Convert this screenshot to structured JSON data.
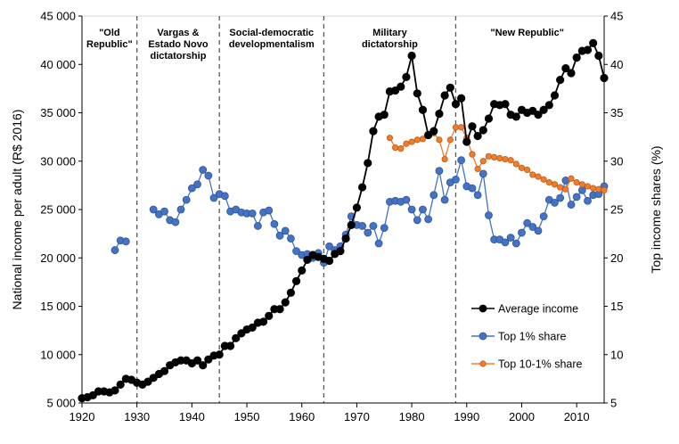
{
  "chart_data": {
    "type": "line",
    "title": "",
    "xlabel": "",
    "ylabel_left": "National income per adult (R$ 2016)",
    "ylabel_right": "Top income shares (%)",
    "xlim": [
      1920,
      2015
    ],
    "ylim_left": [
      5000,
      45000
    ],
    "ylim_right": [
      5,
      45
    ],
    "x_ticks": [
      "1920",
      "1930",
      "1940",
      "1950",
      "1960",
      "1970",
      "1980",
      "1990",
      "2000",
      "2010"
    ],
    "y_left_ticks": [
      "5 000",
      "10 000",
      "15 000",
      "20 000",
      "25 000",
      "30 000",
      "35 000",
      "40 000",
      "45 000"
    ],
    "y_right_ticks": [
      "5",
      "10",
      "15",
      "20",
      "25",
      "30",
      "35",
      "40",
      "45"
    ],
    "grid": false,
    "legend_position": "bottom-right",
    "period_dividers": [
      1930,
      1945,
      1964,
      1988
    ],
    "period_labels": [
      {
        "lines": [
          "\"Old",
          "Republic\""
        ],
        "x": 1925
      },
      {
        "lines": [
          "Vargas &",
          "Estado Novo",
          "dictatorship"
        ],
        "x": 1937.5
      },
      {
        "lines": [
          "Social-democratic",
          "developmentalism"
        ],
        "x": 1954.5
      },
      {
        "lines": [
          "Military",
          "dictatorship"
        ],
        "x": 1976
      },
      {
        "lines": [
          "\"New Republic\""
        ],
        "x": 2001
      }
    ],
    "series": [
      {
        "name": "Average income",
        "axis": "left",
        "color": "#000000",
        "x": [
          1920,
          1921,
          1922,
          1923,
          1924,
          1925,
          1926,
          1927,
          1928,
          1929,
          1930,
          1931,
          1932,
          1933,
          1934,
          1935,
          1936,
          1937,
          1938,
          1939,
          1940,
          1941,
          1942,
          1943,
          1944,
          1945,
          1946,
          1947,
          1948,
          1949,
          1950,
          1951,
          1952,
          1953,
          1954,
          1955,
          1956,
          1957,
          1958,
          1959,
          1960,
          1961,
          1962,
          1963,
          1964,
          1965,
          1966,
          1967,
          1968,
          1969,
          1970,
          1971,
          1972,
          1973,
          1974,
          1975,
          1976,
          1977,
          1978,
          1979,
          1980,
          1981,
          1982,
          1983,
          1984,
          1985,
          1986,
          1987,
          1988,
          1989,
          1990,
          1991,
          1992,
          1993,
          1994,
          1995,
          1996,
          1997,
          1998,
          1999,
          2000,
          2001,
          2002,
          2003,
          2004,
          2005,
          2006,
          2007,
          2008,
          2009,
          2010,
          2011,
          2012,
          2013,
          2014,
          2015
        ],
        "values": [
          5500,
          5600,
          5800,
          6200,
          6200,
          6100,
          6300,
          6900,
          7500,
          7400,
          7100,
          6900,
          7200,
          7600,
          8000,
          8300,
          8900,
          9200,
          9400,
          9400,
          9100,
          9400,
          8900,
          9500,
          9900,
          10000,
          10900,
          10900,
          11700,
          12200,
          12600,
          12800,
          13300,
          13400,
          14000,
          14700,
          14700,
          15400,
          16400,
          17600,
          18700,
          19800,
          20300,
          20100,
          19900,
          19700,
          20400,
          20700,
          22000,
          23400,
          25200,
          27300,
          29800,
          33100,
          34600,
          34800,
          37200,
          37300,
          37700,
          38700,
          40900,
          37000,
          35300,
          32700,
          33100,
          34900,
          36800,
          37600,
          35900,
          36500,
          32000,
          33600,
          32600,
          33200,
          34400,
          35900,
          35800,
          35900,
          34800,
          34600,
          35300,
          35000,
          35200,
          34800,
          35300,
          35800,
          36800,
          38400,
          39600,
          39100,
          40700,
          41400,
          41500,
          42200,
          40900,
          38600
        ]
      },
      {
        "name": "Top 1% share",
        "axis": "right",
        "color": "#4472C4",
        "x": [
          1926,
          1927,
          1928,
          1933,
          1934,
          1935,
          1936,
          1937,
          1938,
          1939,
          1940,
          1941,
          1942,
          1943,
          1944,
          1945,
          1946,
          1947,
          1948,
          1949,
          1950,
          1951,
          1952,
          1953,
          1954,
          1955,
          1956,
          1957,
          1958,
          1959,
          1960,
          1961,
          1962,
          1963,
          1964,
          1965,
          1966,
          1967,
          1968,
          1969,
          1970,
          1971,
          1972,
          1973,
          1974,
          1975,
          1976,
          1977,
          1978,
          1979,
          1980,
          1981,
          1982,
          1983,
          1984,
          1985,
          1986,
          1987,
          1988,
          1989,
          1990,
          1991,
          1992,
          1993,
          1994,
          1995,
          1996,
          1997,
          1998,
          1999,
          2000,
          2001,
          2002,
          2003,
          2004,
          2005,
          2006,
          2007,
          2008,
          2009,
          2010,
          2011,
          2012,
          2013,
          2014,
          2015
        ],
        "values": [
          20.8,
          21.8,
          21.7,
          25.0,
          24.5,
          24.8,
          23.9,
          23.7,
          25.0,
          26.0,
          27.2,
          27.6,
          29.1,
          28.5,
          26.2,
          26.6,
          26.4,
          24.8,
          25.0,
          24.7,
          24.6,
          24.6,
          23.3,
          24.7,
          24.9,
          23.5,
          22.3,
          22.8,
          22.0,
          20.7,
          20.3,
          20.4,
          20.0,
          20.5,
          19.5,
          21.2,
          20.8,
          21.2,
          22.4,
          24.3,
          23.4,
          23.3,
          22.6,
          23.3,
          21.5,
          23.1,
          25.8,
          25.9,
          25.8,
          26.0,
          25.0,
          23.9,
          25.0,
          24.0,
          26.5,
          29.0,
          26.0,
          27.8,
          28.1,
          30.1,
          27.4,
          27.2,
          26.5,
          28.7,
          24.4,
          21.9,
          21.9,
          21.6,
          22.1,
          21.5,
          22.6,
          23.6,
          23.2,
          22.8,
          24.3,
          26.0,
          25.7,
          26.2,
          28.0,
          25.5,
          26.3,
          27.0,
          25.9,
          26.5,
          26.6,
          27.4
        ]
      },
      {
        "name": "Top 10-1% share",
        "axis": "right",
        "color": "#ED7D31",
        "x": [
          1976,
          1977,
          1978,
          1979,
          1980,
          1981,
          1982,
          1983,
          1984,
          1985,
          1986,
          1987,
          1988,
          1989,
          1990,
          1991,
          1992,
          1993,
          1994,
          1995,
          1996,
          1997,
          1998,
          1999,
          2000,
          2001,
          2002,
          2003,
          2004,
          2005,
          2006,
          2007,
          2008,
          2009,
          2010,
          2011,
          2012,
          2013,
          2014,
          2015
        ],
        "values": [
          32.4,
          31.4,
          31.3,
          31.8,
          32.0,
          32.2,
          32.3,
          32.7,
          32.9,
          32.2,
          30.2,
          32.2,
          33.5,
          33.5,
          32.4,
          30.7,
          29.2,
          30.0,
          30.5,
          30.4,
          30.3,
          30.2,
          30.1,
          29.7,
          29.3,
          29.1,
          28.6,
          28.4,
          28.1,
          27.8,
          27.6,
          27.3,
          27.1,
          28.2,
          27.8,
          27.6,
          27.4,
          27.2,
          27.1,
          27.0
        ]
      }
    ]
  }
}
